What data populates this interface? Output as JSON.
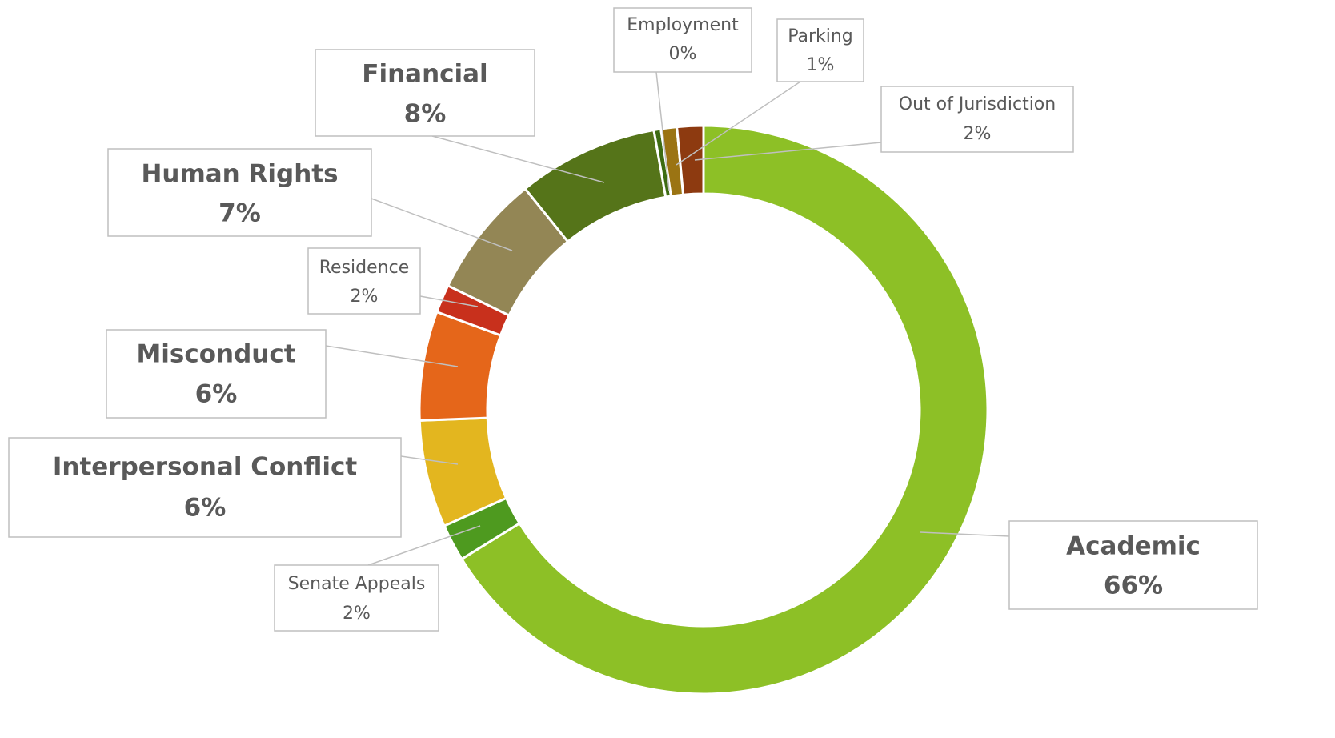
{
  "chart_data": {
    "type": "donut",
    "categories": [
      "Academic",
      "Senate Appeals",
      "Interpersonal Conflict",
      "Misconduct",
      "Residence",
      "Human Rights",
      "Financial",
      "Employment",
      "Parking",
      "Out of Jurisdiction"
    ],
    "values": [
      66.2,
      2.1,
      6.1,
      6.2,
      1.6,
      7.0,
      8.0,
      0.4,
      0.9,
      1.5
    ],
    "value_labels": [
      "66%",
      "2%",
      "6%",
      "6%",
      "2%",
      "7%",
      "8%",
      "0%",
      "1%",
      "2%"
    ],
    "colors": [
      "#8dc026",
      "#4e9a1f",
      "#e3b61f",
      "#e5661a",
      "#c8301c",
      "#938655",
      "#557419",
      "#3d6b12",
      "#9b7413",
      "#8d3a10"
    ]
  }
}
